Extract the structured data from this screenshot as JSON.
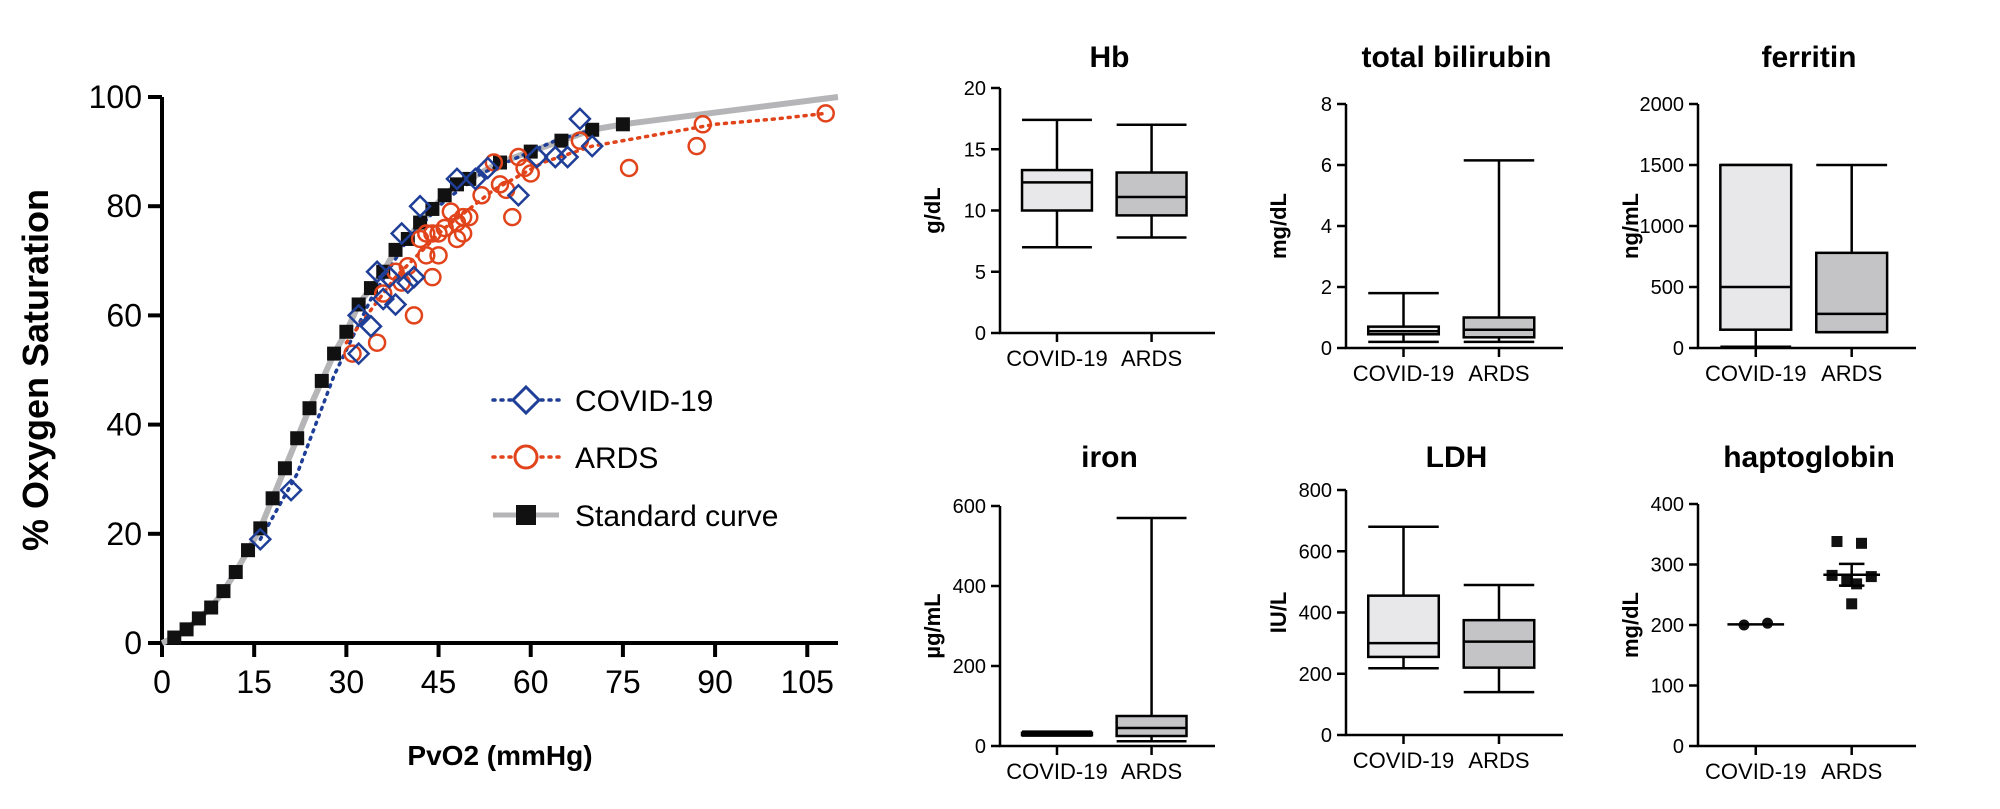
{
  "chart_data": [
    {
      "id": "odc",
      "type": "scatter",
      "title": "",
      "xlabel": "PvO2 (mmHg)",
      "ylabel": "% Oxygen Saturation",
      "xlim": [
        0,
        110
      ],
      "ylim": [
        0,
        100
      ],
      "xticks": [
        0,
        15,
        30,
        45,
        60,
        75,
        90,
        105
      ],
      "yticks": [
        0,
        20,
        40,
        60,
        80,
        100
      ],
      "legend": [
        "COVID-19",
        "ARDS",
        "Standard curve"
      ],
      "series": [
        {
          "name": "COVID-19",
          "marker": "diamond",
          "color": "#1f3e97",
          "points": [
            [
              16,
              19
            ],
            [
              21,
              28
            ],
            [
              32,
              53
            ],
            [
              32,
              60
            ],
            [
              34,
              58
            ],
            [
              35,
              68
            ],
            [
              36,
              63
            ],
            [
              37,
              67
            ],
            [
              38,
              62
            ],
            [
              39,
              75
            ],
            [
              40,
              66
            ],
            [
              41,
              67
            ],
            [
              42,
              80
            ],
            [
              48,
              85
            ],
            [
              51,
              85
            ],
            [
              53,
              87
            ],
            [
              58,
              82
            ],
            [
              61,
              89
            ],
            [
              64,
              89
            ],
            [
              66,
              89
            ],
            [
              68,
              96
            ],
            [
              70,
              91
            ]
          ],
          "fit": [
            [
              16,
              19
            ],
            [
              22,
              31
            ],
            [
              28,
              49
            ],
            [
              34,
              63
            ],
            [
              40,
              74
            ],
            [
              46,
              81
            ],
            [
              52,
              86
            ],
            [
              58,
              89
            ],
            [
              64,
              92
            ],
            [
              70,
              94
            ]
          ]
        },
        {
          "name": "ARDS",
          "marker": "circle",
          "color": "#e1431a",
          "points": [
            [
              31,
              53
            ],
            [
              35,
              55
            ],
            [
              36,
              64
            ],
            [
              38,
              68
            ],
            [
              39,
              66
            ],
            [
              40,
              69
            ],
            [
              41,
              60
            ],
            [
              42,
              74
            ],
            [
              43,
              71
            ],
            [
              43,
              75
            ],
            [
              44,
              75
            ],
            [
              44,
              67
            ],
            [
              45,
              71
            ],
            [
              45,
              75
            ],
            [
              46,
              76
            ],
            [
              47,
              79
            ],
            [
              48,
              74
            ],
            [
              48,
              77
            ],
            [
              49,
              78
            ],
            [
              49,
              75
            ],
            [
              50,
              78
            ],
            [
              52,
              82
            ],
            [
              54,
              88
            ],
            [
              55,
              84
            ],
            [
              56,
              83
            ],
            [
              57,
              78
            ],
            [
              58,
              89
            ],
            [
              59,
              87
            ],
            [
              60,
              86
            ],
            [
              68,
              92
            ],
            [
              76,
              87
            ],
            [
              87,
              91
            ],
            [
              88,
              95
            ],
            [
              108,
              97
            ]
          ],
          "fit": [
            [
              30,
              55
            ],
            [
              38,
              67
            ],
            [
              46,
              76
            ],
            [
              54,
              83
            ],
            [
              62,
              88
            ],
            [
              70,
              91
            ],
            [
              80,
              93
            ],
            [
              90,
              95
            ],
            [
              100,
              96
            ],
            [
              108,
              97
            ]
          ]
        },
        {
          "name": "Standard curve",
          "marker": "square",
          "color": "#111111",
          "line_color": "#b5b5b8",
          "points": [
            [
              2,
              1
            ],
            [
              4,
              2.5
            ],
            [
              6,
              4.5
            ],
            [
              8,
              6.5
            ],
            [
              10,
              9.5
            ],
            [
              12,
              13
            ],
            [
              14,
              17
            ],
            [
              16,
              21
            ],
            [
              18,
              26.5
            ],
            [
              20,
              32
            ],
            [
              22,
              37.5
            ],
            [
              24,
              43
            ],
            [
              26,
              48
            ],
            [
              28,
              53
            ],
            [
              30,
              57
            ],
            [
              32,
              62
            ],
            [
              34,
              65
            ],
            [
              36,
              68
            ],
            [
              38,
              72
            ],
            [
              40,
              74
            ],
            [
              42,
              77
            ],
            [
              44,
              79.5
            ],
            [
              46,
              82
            ],
            [
              48,
              84
            ],
            [
              50,
              85
            ],
            [
              55,
              88
            ],
            [
              60,
              90
            ],
            [
              65,
              92
            ],
            [
              70,
              94
            ],
            [
              75,
              95
            ]
          ],
          "curve_end": [
            110,
            100
          ]
        }
      ]
    },
    {
      "id": "hb",
      "type": "box",
      "title": "Hb",
      "ylabel": "g/dL",
      "categories": [
        "COVID-19",
        "ARDS"
      ],
      "ylim": [
        0,
        20
      ],
      "yticks": [
        "0",
        "5",
        "10",
        "15",
        "20"
      ],
      "boxes": [
        {
          "min": 7,
          "q1": 10,
          "median": 12.3,
          "q3": 13.3,
          "max": 17.4
        },
        {
          "min": 7.8,
          "q1": 9.6,
          "median": 11.1,
          "q3": 13.1,
          "max": 17
        }
      ]
    },
    {
      "id": "bili",
      "type": "box",
      "title": "total bilirubin",
      "ylabel": "mg/dL",
      "categories": [
        "COVID-19",
        "ARDS"
      ],
      "ylim": [
        0,
        8
      ],
      "yticks": [
        "0",
        "2",
        "4",
        "6",
        "8"
      ],
      "boxes": [
        {
          "min": 0.2,
          "q1": 0.45,
          "median": 0.55,
          "q3": 0.7,
          "max": 1.8
        },
        {
          "min": 0.2,
          "q1": 0.35,
          "median": 0.6,
          "q3": 1.0,
          "max": 6.15
        }
      ]
    },
    {
      "id": "ferritin",
      "type": "box",
      "title": "ferritin",
      "ylabel": "ng/mL",
      "categories": [
        "COVID-19",
        "ARDS"
      ],
      "ylim": [
        0,
        2000
      ],
      "yticks": [
        "0",
        "500",
        "1000",
        "1500",
        "2000"
      ],
      "boxes": [
        {
          "min": 10,
          "q1": 150,
          "median": 500,
          "q3": 1500,
          "max": 1500
        },
        {
          "min": 130,
          "q1": 130,
          "median": 280,
          "q3": 780,
          "max": 1500
        }
      ]
    },
    {
      "id": "iron",
      "type": "box",
      "title": "iron",
      "ylabel": "µg/mL",
      "categories": [
        "COVID-19",
        "ARDS"
      ],
      "ylim": [
        0,
        600
      ],
      "yticks": [
        "0",
        "200",
        "400",
        "600"
      ],
      "boxes": [
        {
          "min": 26,
          "q1": 27,
          "median": 30,
          "q3": 33,
          "max": 36
        },
        {
          "min": 12,
          "q1": 25,
          "median": 45,
          "q3": 75,
          "max": 570
        }
      ]
    },
    {
      "id": "ldh",
      "type": "box",
      "title": "LDH",
      "ylabel": "IU/L",
      "categories": [
        "COVID-19",
        "ARDS"
      ],
      "ylim": [
        0,
        800
      ],
      "yticks": [
        "0",
        "200",
        "400",
        "600",
        "800"
      ],
      "boxes": [
        {
          "min": 218,
          "q1": 255,
          "median": 300,
          "q3": 455,
          "max": 680
        },
        {
          "min": 140,
          "q1": 220,
          "median": 305,
          "q3": 375,
          "max": 490
        }
      ]
    },
    {
      "id": "hapto",
      "type": "dot",
      "title": "haptoglobin",
      "ylabel": "mg/dL",
      "categories": [
        "COVID-19",
        "ARDS"
      ],
      "ylim": [
        0,
        400
      ],
      "yticks": [
        "0",
        "100",
        "200",
        "300",
        "400"
      ],
      "groups": [
        {
          "marker": "circle",
          "mean": 201,
          "sem": 0,
          "points": [
            [
              -0.12,
              200
            ],
            [
              0.12,
              203
            ]
          ]
        },
        {
          "marker": "square",
          "mean": 283,
          "sem": 18,
          "points": [
            [
              -0.15,
              338
            ],
            [
              0.1,
              335
            ],
            [
              -0.2,
              282
            ],
            [
              0.2,
              280
            ],
            [
              -0.05,
              272
            ],
            [
              0.05,
              268
            ],
            [
              0.0,
              235
            ]
          ]
        }
      ]
    }
  ]
}
